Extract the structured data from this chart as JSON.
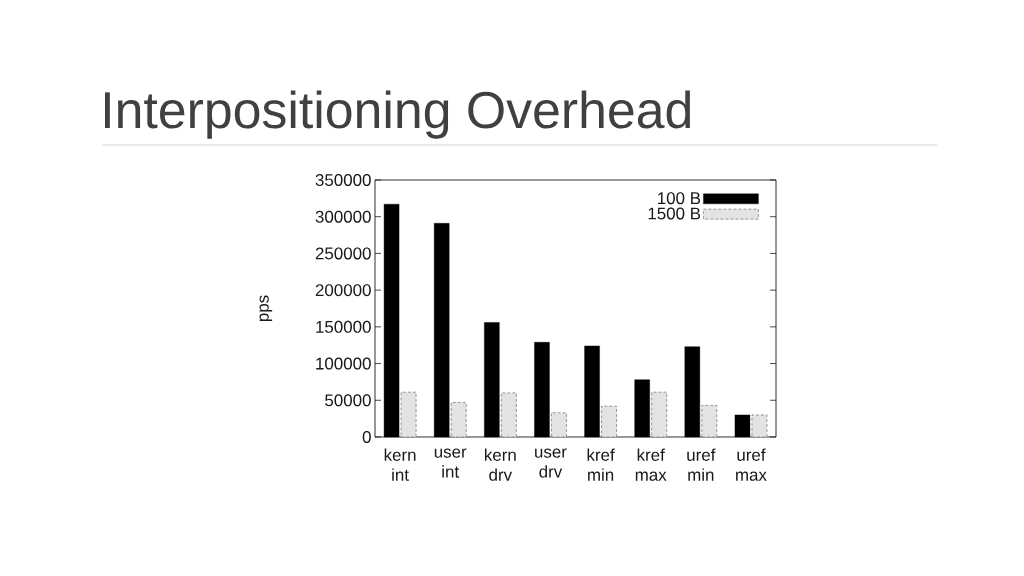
{
  "chart_data": {
    "type": "bar",
    "title": "Interpositioning Overhead",
    "ylabel": "pps",
    "categories": [
      "kern int",
      "user int",
      "kern drv",
      "user drv",
      "kref min",
      "kref max",
      "uref min",
      "uref max"
    ],
    "series": [
      {
        "name": "100 B",
        "color": "#000000",
        "values": [
          317000,
          291000,
          156000,
          129000,
          124000,
          78000,
          123000,
          30000
        ]
      },
      {
        "name": "1500 B",
        "color": "#808080",
        "values": [
          61000,
          47000,
          60000,
          33000,
          42000,
          61000,
          43000,
          30000
        ]
      }
    ],
    "ylim": [
      0,
      350000
    ],
    "yticks": [
      0,
      50000,
      100000,
      150000,
      200000,
      250000,
      300000,
      350000
    ],
    "legend": "top right"
  }
}
